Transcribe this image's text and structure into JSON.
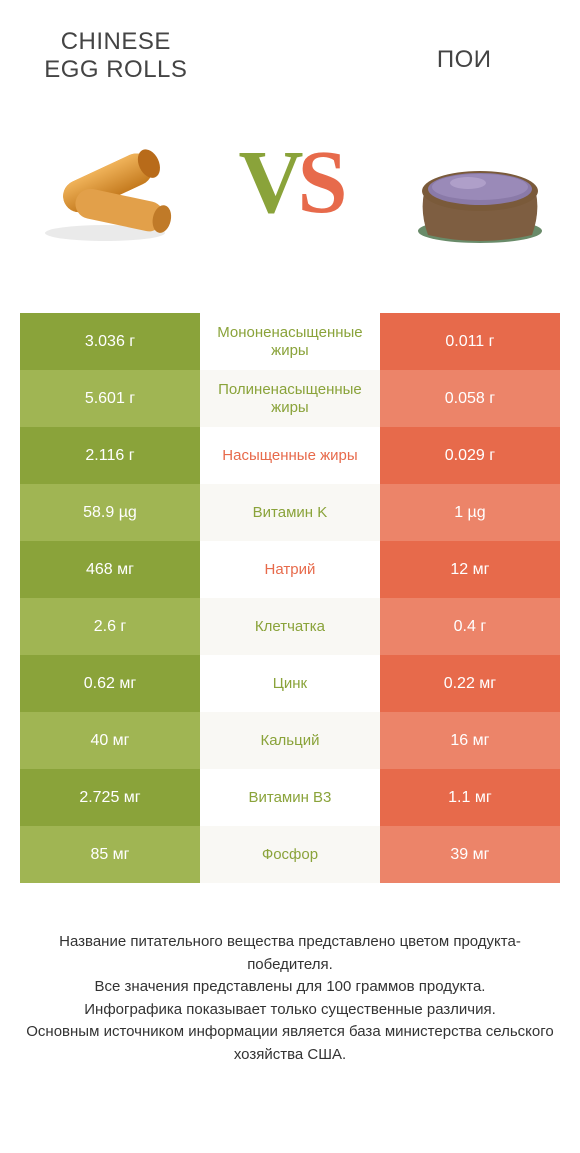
{
  "header": {
    "left_title": "CHINESE EGG ROLLS",
    "right_title": "ПОИ",
    "vs_v": "V",
    "vs_s": "S"
  },
  "colors": {
    "left_odd": "#8aa33a",
    "left_even": "#a0b553",
    "right_odd": "#e76a4b",
    "right_even": "#ec8469",
    "mid_odd": "#ffffff",
    "mid_even": "#f9f8f4",
    "winner_left_text": "#8aa33a",
    "winner_right_text": "#e76a4b"
  },
  "rows": [
    {
      "left": "3.036 г",
      "label": "Мононенасыщенные жиры",
      "right": "0.011 г",
      "winner": "left"
    },
    {
      "left": "5.601 г",
      "label": "Полиненасыщенные жиры",
      "right": "0.058 г",
      "winner": "left"
    },
    {
      "left": "2.116 г",
      "label": "Насыщенные жиры",
      "right": "0.029 г",
      "winner": "right"
    },
    {
      "left": "58.9 µg",
      "label": "Витамин K",
      "right": "1 µg",
      "winner": "left"
    },
    {
      "left": "468 мг",
      "label": "Натрий",
      "right": "12 мг",
      "winner": "right"
    },
    {
      "left": "2.6 г",
      "label": "Клетчатка",
      "right": "0.4 г",
      "winner": "left"
    },
    {
      "left": "0.62 мг",
      "label": "Цинк",
      "right": "0.22 мг",
      "winner": "left"
    },
    {
      "left": "40 мг",
      "label": "Кальций",
      "right": "16 мг",
      "winner": "left"
    },
    {
      "left": "2.725 мг",
      "label": "Витамин B3",
      "right": "1.1 мг",
      "winner": "left"
    },
    {
      "left": "85 мг",
      "label": "Фосфор",
      "right": "39 мг",
      "winner": "left"
    }
  ],
  "footer": {
    "line1": "Название питательного вещества представлено цветом продукта-победителя.",
    "line2": "Все значения представлены для 100 граммов продукта.",
    "line3": "Инфографика показывает только существенные различия.",
    "line4": "Основным источником информации является база министерства сельского хозяйства США."
  }
}
